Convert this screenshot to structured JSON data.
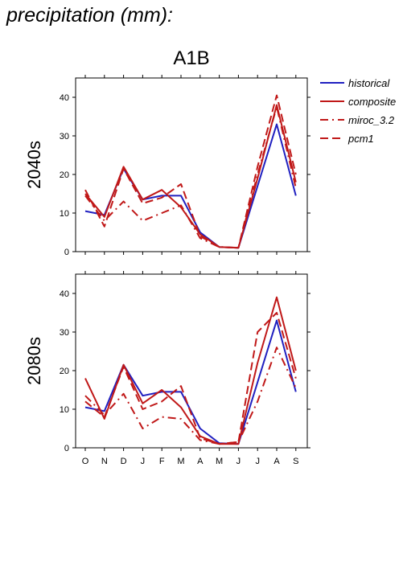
{
  "page_title": "precipitation (mm):",
  "colors": {
    "historical": "#2020c0",
    "composite": "#c01818",
    "miroc_3.2": "#c01818",
    "pcm1": "#c01818"
  },
  "chart_data": {
    "type": "line",
    "title": "A1B",
    "categories": [
      "O",
      "N",
      "D",
      "J",
      "F",
      "M",
      "A",
      "M",
      "J",
      "J",
      "A",
      "S"
    ],
    "ylim": [
      0,
      45
    ],
    "yticks": [
      0,
      10,
      20,
      30,
      40
    ],
    "legend": {
      "position": "right",
      "entries": [
        {
          "name": "historical",
          "style": "solid",
          "color": "#2020c0"
        },
        {
          "name": "composite",
          "style": "solid",
          "color": "#c01818"
        },
        {
          "name": "miroc_3.2",
          "style": "dashdot",
          "color": "#c01818"
        },
        {
          "name": "pcm1",
          "style": "dashed",
          "color": "#c01818"
        }
      ]
    },
    "panels": [
      {
        "label": "2040s",
        "series": [
          {
            "name": "historical",
            "values": [
              10.5,
              9.5,
              21.5,
              13.5,
              14.5,
              14.5,
              5.0,
              1.2,
              1.0,
              17.0,
              33.0,
              14.5
            ]
          },
          {
            "name": "composite",
            "values": [
              15.0,
              9.0,
              22.0,
              13.5,
              16.0,
              11.5,
              4.5,
              1.2,
              1.0,
              19.0,
              38.0,
              18.0
            ]
          },
          {
            "name": "miroc_3.2",
            "values": [
              14.5,
              8.0,
              13.0,
              8.0,
              10.0,
              12.0,
              3.5,
              1.2,
              1.0,
              20.0,
              37.5,
              16.5
            ]
          },
          {
            "name": "pcm1",
            "values": [
              16.0,
              6.5,
              21.5,
              12.5,
              14.0,
              17.5,
              4.0,
              1.2,
              1.0,
              22.0,
              40.5,
              20.0
            ]
          }
        ]
      },
      {
        "label": "2080s",
        "series": [
          {
            "name": "historical",
            "values": [
              10.5,
              9.5,
              21.5,
              13.5,
              14.5,
              14.5,
              5.0,
              1.2,
              1.0,
              17.0,
              33.0,
              14.5
            ]
          },
          {
            "name": "composite",
            "values": [
              18.0,
              7.5,
              21.5,
              11.5,
              15.0,
              10.5,
              3.0,
              1.0,
              1.0,
              22.0,
              39.0,
              20.0
            ]
          },
          {
            "name": "miroc_3.2",
            "values": [
              13.5,
              8.5,
              14.0,
              5.0,
              8.0,
              7.5,
              2.0,
              1.0,
              1.5,
              12.0,
              26.0,
              15.5
            ]
          },
          {
            "name": "pcm1",
            "values": [
              12.0,
              8.0,
              21.0,
              10.0,
              12.0,
              16.0,
              2.5,
              1.0,
              1.5,
              30.0,
              35.0,
              18.0
            ]
          }
        ]
      }
    ]
  }
}
